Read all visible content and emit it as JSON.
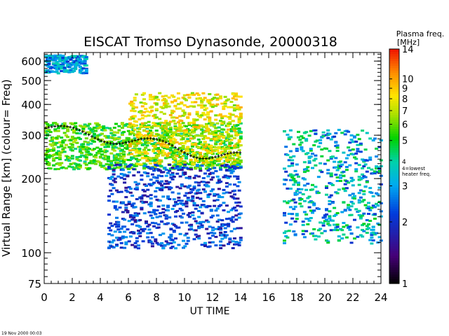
{
  "chart_data": {
    "type": "heatmap",
    "title": "EISCAT Tromso Dynasonde,  20000318",
    "xlabel": "UT TIME",
    "ylabel": "Virtual Range [km]   (colour= Freq)",
    "x_ticks": [
      "0",
      "2",
      "4",
      "6",
      "8",
      "10",
      "12",
      "14",
      "16",
      "18",
      "20",
      "22",
      "24"
    ],
    "x_range": [
      0,
      24
    ],
    "y_scale": "log",
    "y_range": [
      75,
      650
    ],
    "y_ticks": [
      "75",
      "100",
      "200",
      "300",
      "400",
      "500",
      "600"
    ],
    "colorbar": {
      "title_line1": "Plasma freq.",
      "title_line2": "[MHz]",
      "scale": "log",
      "range": [
        1,
        14
      ],
      "ticks": [
        "1",
        "2",
        "3",
        "4",
        "5",
        "6",
        "7",
        "8",
        "9",
        "10",
        "14"
      ],
      "note_line1": "4=lowest",
      "note_line2": "heater freq."
    },
    "data_gap_hours": [
      14,
      16.6
    ],
    "regions": [
      {
        "name": "F2 trace",
        "x0": 0,
        "x1": 14,
        "y_lo": 220,
        "y_hi": 340,
        "freq_mhz": [
          4,
          7
        ]
      },
      {
        "name": "upper echoes",
        "x0": 0,
        "x1": 3,
        "y_lo": 540,
        "y_hi": 640,
        "freq_mhz": [
          2,
          4
        ]
      },
      {
        "name": "daytime F-region",
        "x0": 6,
        "x1": 14,
        "y_lo": 230,
        "y_hi": 450,
        "freq_mhz": [
          6,
          10
        ]
      },
      {
        "name": "lower spread",
        "x0": 4.5,
        "x1": 14,
        "y_lo": 105,
        "y_hi": 230,
        "freq_mhz": [
          1.5,
          3
        ]
      },
      {
        "name": "evening F-region",
        "x0": 17,
        "x1": 24,
        "y_lo": 110,
        "y_hi": 320,
        "freq_mhz": [
          2,
          5
        ]
      }
    ],
    "footer_timestamp": "19 Nov 2000 00:03"
  }
}
